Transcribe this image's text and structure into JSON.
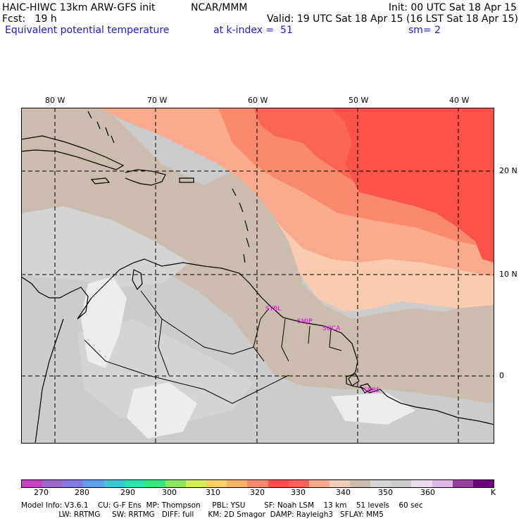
{
  "header": {
    "model_title": "HAIC-HIWC 13km ARW-GFS init",
    "org": "NCAR/MMM",
    "init": "Init: 00 UTC Sat 18 Apr 15",
    "fcst": "Fcst:   19 h",
    "valid": "Valid: 19 UTC Sat 18 Apr 15 (16 LST Sat 18 Apr 15)",
    "field": "Equivalent potential temperature",
    "kindex": "at k-index =  51",
    "smoothing": "sm= 2"
  },
  "map": {
    "lon_labels": [
      "80 W",
      "70 W",
      "60 W",
      "50 W",
      "40 W"
    ],
    "lat_labels": [
      "20 N",
      "10 N",
      "0"
    ],
    "stations": [
      "SYBL",
      "SMJP",
      "SOCA",
      "SBBE"
    ],
    "colors": {
      "gray_light": "#d4d4d4",
      "gray_mid": "#cccccc",
      "tan": "#cbbcae",
      "white": "#ececec",
      "peach_light": "#fbcbb0",
      "salmon": "#fbab8d",
      "coral": "#fb8a6c",
      "red": "#fb6555",
      "red_dark": "#fb5349"
    }
  },
  "colorbar": {
    "colors": [
      "#c93fc6",
      "#9d68cc",
      "#8478e7",
      "#5d9ff0",
      "#3cc6d6",
      "#35dfb0",
      "#3ee478",
      "#8be85c",
      "#d7ec5a",
      "#f7d166",
      "#fbb464",
      "#fb8a6c",
      "#fb5349",
      "#fb6555",
      "#fbab8d",
      "#f1cdb4",
      "#cbbcae",
      "#d4d4d4",
      "#cccccc",
      "#ecdced",
      "#ddb5e6",
      "#9a3ca0",
      "#6e0080"
    ],
    "tick_labels": [
      "270",
      "280",
      "290",
      "300",
      "310",
      "320",
      "330",
      "340",
      "350",
      "360",
      "K"
    ]
  },
  "model_info": {
    "line1": "Model Info: V3.6.1    CU: G-F Ens  MP: Thompson     PBL: YSU        SF: Noah LSM    13 km    51 levels    60 sec",
    "line2": "                LW: RRTMG     SW: RRTMG   DIFF: full      KM: 2D Smagor  DAMP: Rayleigh3   SFLAY: MM5"
  }
}
